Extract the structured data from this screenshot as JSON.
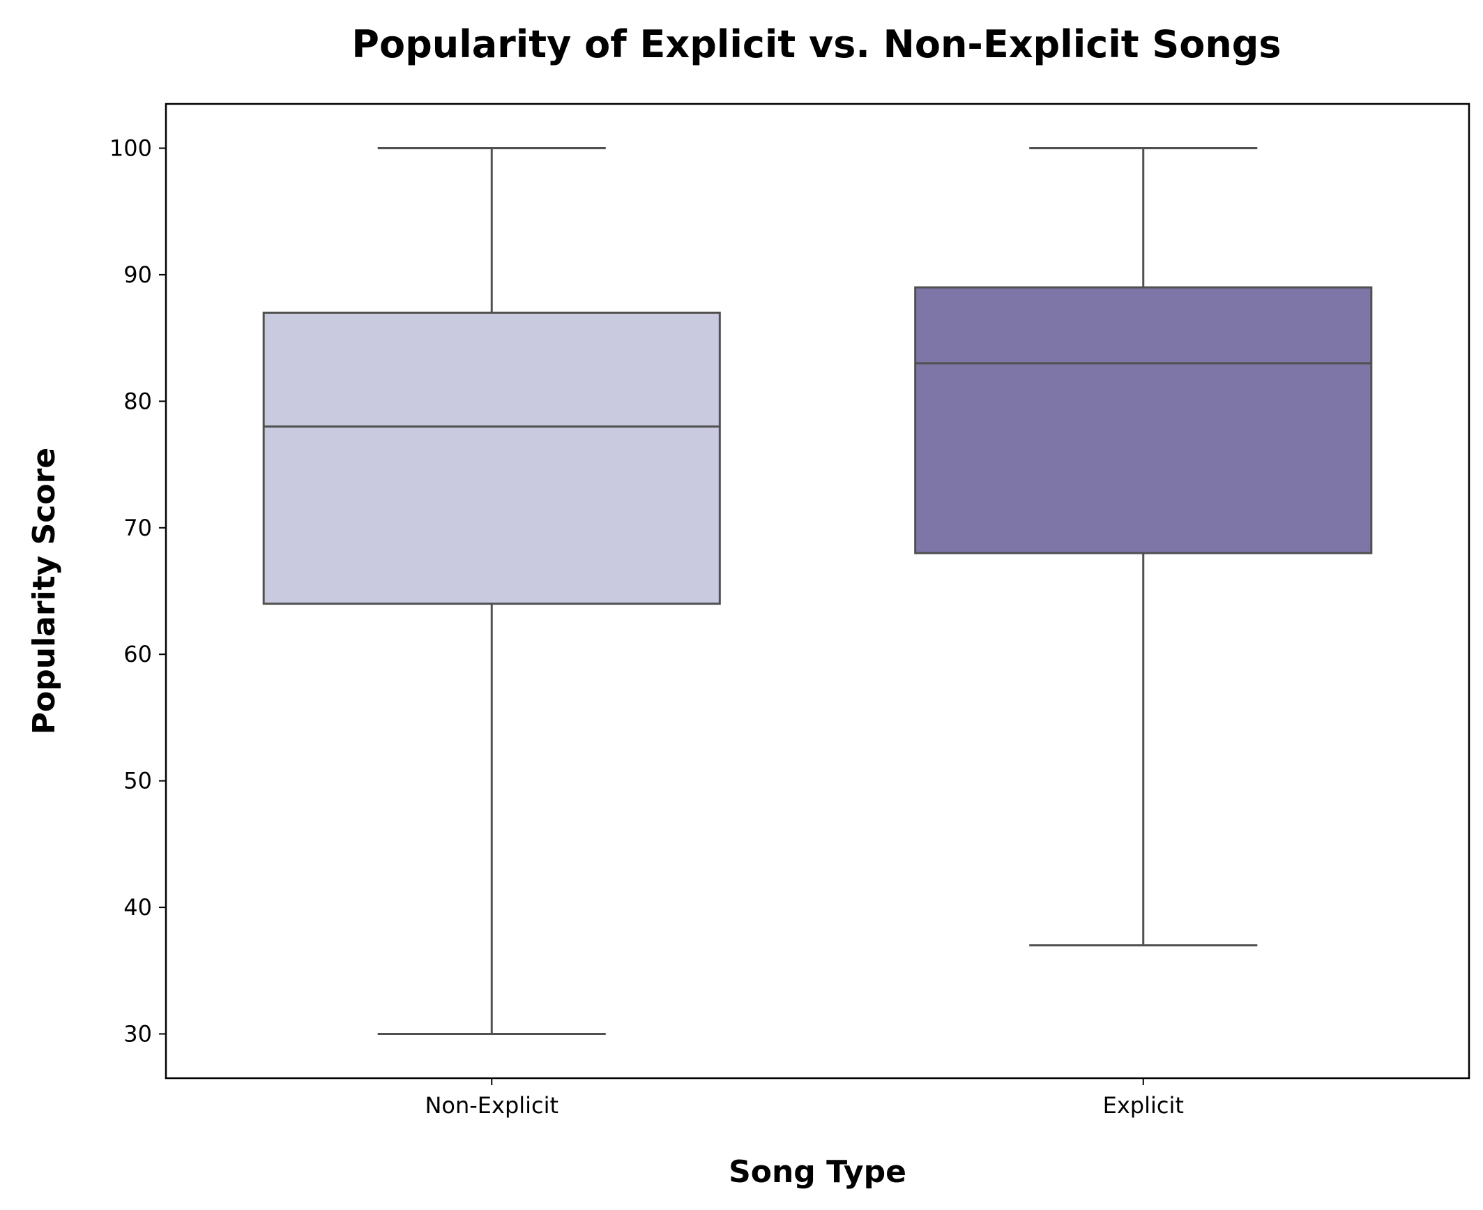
{
  "chart_data": {
    "type": "box",
    "title": "Popularity of Explicit vs. Non-Explicit Songs",
    "xlabel": "Song Type",
    "ylabel": "Popularity Score",
    "ylim": [
      26.5,
      103.5
    ],
    "yticks": [
      30,
      40,
      50,
      60,
      70,
      80,
      90,
      100
    ],
    "grid": false,
    "categories": [
      "Non-Explicit",
      "Explicit"
    ],
    "boxes": [
      {
        "category": "Non-Explicit",
        "whisker_low": 30,
        "q1": 64,
        "median": 78,
        "q3": 87,
        "whisker_high": 100,
        "color": "#c9c9df"
      },
      {
        "category": "Explicit",
        "whisker_low": 37,
        "q1": 68,
        "median": 83,
        "q3": 89,
        "whisker_high": 100,
        "color": "#7f76a8"
      }
    ],
    "line_color": "#505050"
  }
}
